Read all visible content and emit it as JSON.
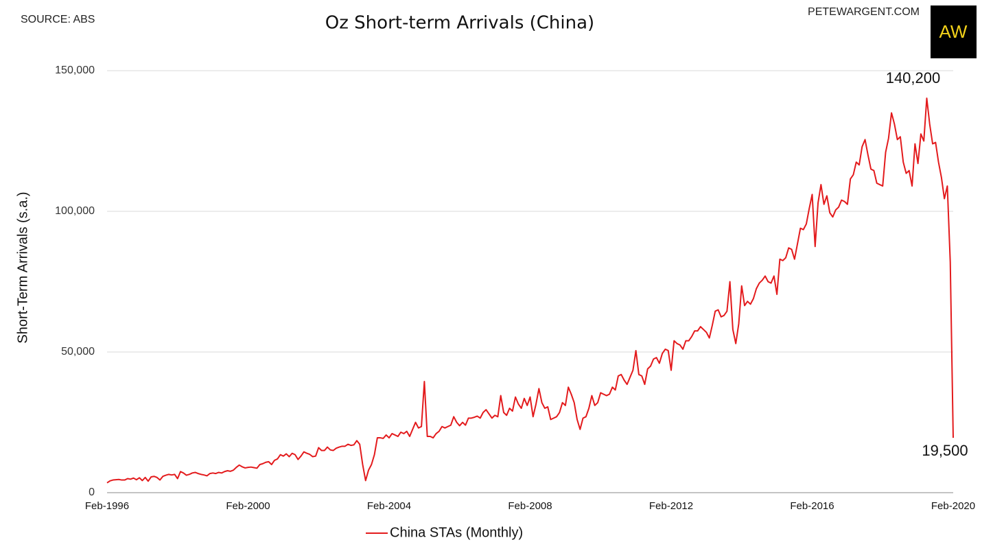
{
  "chart_data": {
    "type": "line",
    "title": "Oz Short-term Arrivals (China)",
    "source": "SOURCE: ABS",
    "credit": "PETEWARGENT.COM",
    "logo": "AW",
    "y_label": "Short-Term Arrivals (s.a.)",
    "categories": [
      "Feb-1996",
      null,
      null,
      null,
      null,
      null,
      null,
      null,
      null,
      null,
      null,
      null,
      null,
      null,
      null,
      null,
      null,
      null,
      null,
      null,
      null,
      null,
      null,
      null,
      null,
      null,
      null,
      null,
      null,
      null,
      null,
      null,
      null,
      null,
      null,
      null,
      null,
      null,
      null,
      null,
      null,
      null,
      null,
      null,
      null,
      null,
      null,
      null,
      "Feb-2000",
      null,
      null,
      null,
      null,
      null,
      null,
      null,
      null,
      null,
      null,
      null,
      null,
      null,
      null,
      null,
      null,
      null,
      null,
      null,
      null,
      null,
      null,
      null,
      null,
      null,
      null,
      null,
      null,
      null,
      null,
      null,
      null,
      null,
      null,
      null,
      null,
      null,
      null,
      null,
      null,
      null,
      null,
      null,
      null,
      null,
      null,
      null,
      "Feb-2004",
      null,
      null,
      null,
      null,
      null,
      null,
      null,
      null,
      null,
      null,
      null,
      null,
      null,
      null,
      null,
      null,
      null,
      null,
      null,
      null,
      null,
      null,
      null,
      null,
      null,
      null,
      null,
      null,
      null,
      null,
      null,
      null,
      null,
      null,
      null,
      null,
      null,
      null,
      null,
      null,
      null,
      null,
      null,
      null,
      null,
      null,
      null,
      "Feb-2008",
      null,
      null,
      null,
      null,
      null,
      null,
      null,
      null,
      null,
      null,
      null,
      null,
      null,
      null,
      null,
      null,
      null,
      null,
      null,
      null,
      null,
      null,
      null,
      null,
      null,
      null,
      null,
      null,
      null,
      null,
      null,
      null,
      null,
      null,
      null,
      null,
      null,
      null,
      null,
      null,
      null,
      null,
      null,
      null,
      null,
      null,
      null,
      "Feb-2012",
      null,
      null,
      null,
      null,
      null,
      null,
      null,
      null,
      null,
      null,
      null,
      null,
      null,
      null,
      null,
      null,
      null,
      null,
      null,
      null,
      null,
      null,
      null,
      null,
      null,
      null,
      null,
      null,
      null,
      null,
      null,
      null,
      null,
      null,
      null,
      null,
      null,
      null,
      null,
      null,
      null,
      null,
      null,
      null,
      null,
      null,
      null,
      "Feb-2016",
      null,
      null,
      null,
      null,
      null,
      null,
      null,
      null,
      null,
      null,
      null,
      null,
      null,
      null,
      null,
      null,
      null,
      null,
      null,
      null,
      null,
      null,
      null,
      null,
      null,
      null,
      null,
      null,
      null,
      null,
      null,
      null,
      null,
      null,
      null,
      null,
      null,
      null,
      null,
      null,
      null,
      null,
      null,
      null,
      null,
      null,
      null,
      "Feb-2020"
    ],
    "series": [
      {
        "name": "China STAs (Monthly)",
        "color": "#e31a1c",
        "values": [
          3500,
          4200,
          4500,
          4600,
          4700,
          4500,
          4500,
          5000,
          4800,
          5200,
          4600,
          5300,
          4300,
          5400,
          4100,
          5600,
          5800,
          5400,
          4500,
          5800,
          6200,
          6500,
          6300,
          6500,
          5000,
          7500,
          7000,
          6200,
          6500,
          7000,
          7200,
          6800,
          6500,
          6300,
          6000,
          6800,
          7000,
          6800,
          7200,
          7000,
          7500,
          7800,
          7600,
          8000,
          9000,
          9800,
          9200,
          8800,
          9000,
          9100,
          8900,
          8700,
          10000,
          10300,
          10800,
          11000,
          10000,
          11500,
          12000,
          13500,
          13000,
          13800,
          12800,
          14000,
          13500,
          11800,
          13000,
          14500,
          14000,
          13600,
          12800,
          13000,
          16000,
          15000,
          15000,
          16200,
          15200,
          15000,
          15800,
          16200,
          16500,
          16500,
          17200,
          16800,
          17000,
          18500,
          17200,
          10000,
          4300,
          8000,
          10000,
          13500,
          19500,
          19500,
          19300,
          20500,
          19500,
          21000,
          20500,
          20000,
          21500,
          21000,
          21800,
          20000,
          22500,
          25000,
          23000,
          23500,
          39500,
          20000,
          20000,
          19500,
          21000,
          21800,
          23500,
          23000,
          23500,
          24000,
          27000,
          25000,
          23800,
          25000,
          24000,
          26500,
          26500,
          26800,
          27200,
          26500,
          28500,
          29500,
          28000,
          26500,
          27500,
          27000,
          34500,
          28500,
          27500,
          30000,
          29000,
          34000,
          31500,
          30000,
          33500,
          31000,
          34000,
          27000,
          31500,
          37000,
          32000,
          30000,
          30500,
          26000,
          26500,
          27000,
          28500,
          32000,
          31000,
          37500,
          35000,
          32000,
          26000,
          22500,
          26500,
          27000,
          30000,
          34500,
          31000,
          32000,
          35500,
          35000,
          34500,
          35000,
          37500,
          36500,
          41500,
          42000,
          40000,
          38500,
          41000,
          43500,
          50500,
          42000,
          41500,
          38500,
          44000,
          45000,
          47500,
          48000,
          46000,
          49500,
          51000,
          50500,
          43500,
          54000,
          53000,
          52500,
          51000,
          54000,
          54000,
          55500,
          57500,
          57500,
          59000,
          58000,
          57000,
          55000,
          59500,
          64500,
          65000,
          62500,
          63000,
          64500,
          75000,
          58000,
          53000,
          60000,
          73500,
          66500,
          68000,
          67000,
          69000,
          72500,
          74500,
          75500,
          77000,
          75000,
          74500,
          77000,
          70500,
          83000,
          82500,
          83500,
          87000,
          86500,
          83000,
          88500,
          94000,
          93500,
          95500,
          101000,
          106000,
          87500,
          103000,
          109500,
          102500,
          105500,
          99500,
          98000,
          100500,
          101500,
          104000,
          103500,
          102500,
          111500,
          113000,
          117500,
          116500,
          123000,
          125500,
          120000,
          115000,
          114500,
          110000,
          109500,
          109000,
          121000,
          126000,
          135000,
          131000,
          125500,
          126500,
          117500,
          113500,
          114500,
          109000,
          124000,
          117000,
          127500,
          125000,
          140200,
          131000,
          124000,
          124500,
          117500,
          112000,
          104500,
          109000,
          82000,
          19500
        ],
        "value_labels": [
          null,
          null,
          null,
          null,
          null,
          null,
          null,
          null,
          null,
          null,
          null,
          null,
          null,
          null,
          null,
          null,
          null,
          null,
          null,
          null,
          null,
          null,
          null,
          null,
          null,
          null,
          null,
          null,
          null,
          null,
          null,
          null,
          null,
          null,
          null,
          null,
          null,
          null,
          null,
          null,
          null,
          null,
          null,
          null,
          null,
          null,
          null,
          null,
          null,
          null,
          null,
          null,
          null,
          null,
          null,
          null,
          null,
          null,
          null,
          null,
          null,
          null,
          null,
          null,
          null,
          null,
          null,
          null,
          null,
          null,
          null,
          null,
          null,
          null,
          null,
          null,
          null,
          null,
          null,
          null,
          null,
          null,
          null,
          null,
          null,
          null,
          null,
          null,
          null,
          null,
          null,
          null,
          null,
          null,
          null,
          null,
          null,
          null,
          null,
          null,
          null,
          null,
          null,
          null,
          null,
          null,
          null,
          null,
          null,
          null,
          null,
          null,
          null,
          null,
          null,
          null,
          null,
          null,
          null,
          null,
          null,
          null,
          null,
          null,
          null,
          null,
          null,
          null,
          null,
          null,
          null,
          null,
          null,
          null,
          null,
          null,
          null,
          null,
          null,
          null,
          null,
          null,
          null,
          null,
          null,
          null,
          null,
          null,
          null,
          null,
          null,
          null,
          null,
          null,
          null,
          null,
          null,
          null,
          null,
          null,
          null,
          null,
          null,
          null,
          null,
          null,
          null,
          null,
          null,
          null,
          null,
          null,
          null,
          null,
          null,
          null,
          null,
          null,
          null,
          null,
          null,
          null,
          null,
          null,
          null,
          null,
          null,
          null,
          null,
          null,
          null,
          null,
          null,
          null,
          null,
          null,
          null,
          null,
          null,
          null,
          null,
          null,
          null,
          null,
          null,
          null,
          null,
          null,
          null,
          null,
          null,
          null,
          null,
          null,
          null,
          null,
          null,
          null,
          null,
          null,
          null,
          null,
          null,
          null,
          null,
          null,
          null,
          null,
          null,
          null,
          null,
          null,
          null,
          null,
          null,
          null,
          null,
          null,
          null,
          null,
          null,
          null,
          null,
          null,
          null,
          null,
          null,
          null,
          null,
          null,
          null,
          null,
          null,
          null,
          null,
          null,
          null,
          null,
          null,
          null,
          null,
          null,
          null,
          null,
          null,
          null,
          null,
          null,
          null,
          null,
          null,
          null,
          null,
          null,
          null,
          null,
          null,
          null,
          null,
          "140,200",
          null,
          null,
          null,
          null,
          null,
          null,
          null,
          null,
          "19,500"
        ]
      }
    ],
    "ylim": [
      0,
      150000
    ],
    "yticks": [
      0,
      {
        "value": 50000,
        "label": "50,000"
      },
      {
        "value": 100000,
        "label": "100,000"
      },
      {
        "value": 150000,
        "label": "150,000"
      }
    ],
    "grid": true,
    "legend": "bottom"
  }
}
